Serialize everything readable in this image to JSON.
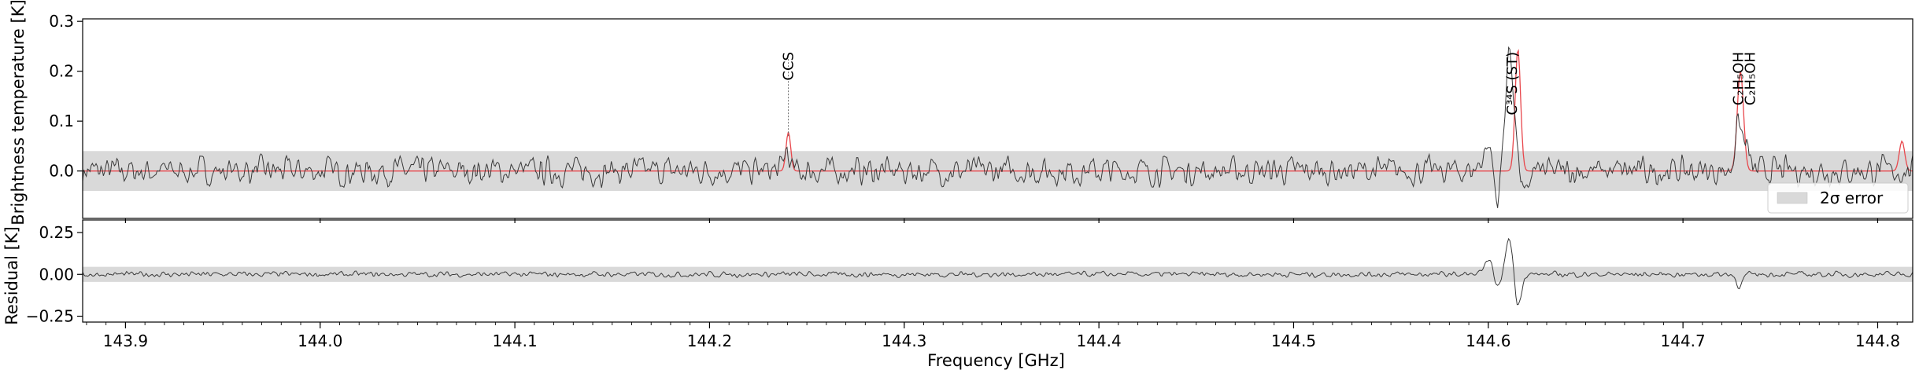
{
  "chart_data": [
    {
      "type": "line",
      "panel": "spectrum",
      "title": "",
      "xlabel": "",
      "ylabel": "Brightness temperature [K]",
      "xlim": [
        143.878,
        144.818
      ],
      "ylim": [
        -0.095,
        0.305
      ],
      "yticks": [
        0.0,
        0.1,
        0.2,
        0.3
      ],
      "ytick_labels": [
        "0.0",
        "0.1",
        "0.2",
        "0.3"
      ],
      "grid": false,
      "error_band": {
        "lower": -0.04,
        "upper": 0.04,
        "color": "#d9d9d9"
      },
      "series": [
        {
          "role": "observed",
          "color": "#3a3a3a",
          "noise_amplitude": 0.02,
          "points": 1500
        },
        {
          "role": "model",
          "color": "#e8474c",
          "peaks": [
            {
              "x": 144.2405,
              "y": 0.078,
              "width": 0.0012
            },
            {
              "x": 144.6152,
              "y": 0.245,
              "width": 0.0014
            },
            {
              "x": 144.7295,
              "y": 0.2,
              "width": 0.0016
            },
            {
              "x": 144.8125,
              "y": 0.06,
              "width": 0.0014
            }
          ]
        }
      ],
      "observed_features": [
        {
          "x": 144.611,
          "y": 0.24,
          "width": 0.0022
        },
        {
          "x": 144.6,
          "y": 0.05,
          "width": 0.003
        },
        {
          "x": 144.6045,
          "y": -0.075,
          "width": 0.0016
        },
        {
          "x": 144.6188,
          "y": -0.06,
          "width": 0.0015
        },
        {
          "x": 144.7285,
          "y": 0.095,
          "width": 0.0018
        },
        {
          "x": 144.7325,
          "y": 0.045,
          "width": 0.0015
        },
        {
          "x": 144.2395,
          "y": 0.045,
          "width": 0.0012
        }
      ],
      "annotations": [
        {
          "x": 144.2405,
          "label": "CCS",
          "line_from": 0.07,
          "line_to": 0.225
        },
        {
          "x": 144.6122,
          "label": "C³⁴S (ST)",
          "line_from": null,
          "line_to": null
        },
        {
          "x": 144.7285,
          "label": "C₂H₅OH",
          "line_from": null,
          "line_to": null
        },
        {
          "x": 144.7345,
          "label": "C₂H₅OH",
          "line_from": null,
          "line_to": null
        }
      ],
      "legend": {
        "position": "bottom-right",
        "entries": [
          {
            "label": "2σ error",
            "color": "#d9d9d9"
          }
        ]
      }
    },
    {
      "type": "line",
      "panel": "residual",
      "title": "",
      "xlabel": "Frequency [GHz]",
      "ylabel": "Residual [K]",
      "xlim": [
        143.878,
        144.818
      ],
      "ylim": [
        -0.285,
        0.325
      ],
      "yticks": [
        -0.25,
        0.0,
        0.25
      ],
      "ytick_labels": [
        "−0.25",
        "0.00",
        "0.25"
      ],
      "xticks": [
        143.9,
        144.0,
        144.1,
        144.2,
        144.3,
        144.4,
        144.5,
        144.6,
        144.7,
        144.8
      ],
      "xtick_labels": [
        "143.9",
        "144.0",
        "144.1",
        "144.2",
        "144.3",
        "144.4",
        "144.5",
        "144.6",
        "144.7",
        "144.8"
      ],
      "grid": false,
      "error_band": {
        "lower": -0.045,
        "upper": 0.045,
        "color": "#d9d9d9"
      },
      "series": [
        {
          "role": "residual",
          "color": "#3a3a3a",
          "noise_amplitude": 0.012,
          "points": 1500
        }
      ],
      "residual_features": [
        {
          "x": 144.611,
          "y": 0.22,
          "width": 0.002
        },
        {
          "x": 144.6,
          "y": 0.07,
          "width": 0.0025
        },
        {
          "x": 144.605,
          "y": -0.09,
          "width": 0.0015
        },
        {
          "x": 144.615,
          "y": -0.21,
          "width": 0.0017
        },
        {
          "x": 144.729,
          "y": -0.07,
          "width": 0.0016
        }
      ]
    }
  ]
}
